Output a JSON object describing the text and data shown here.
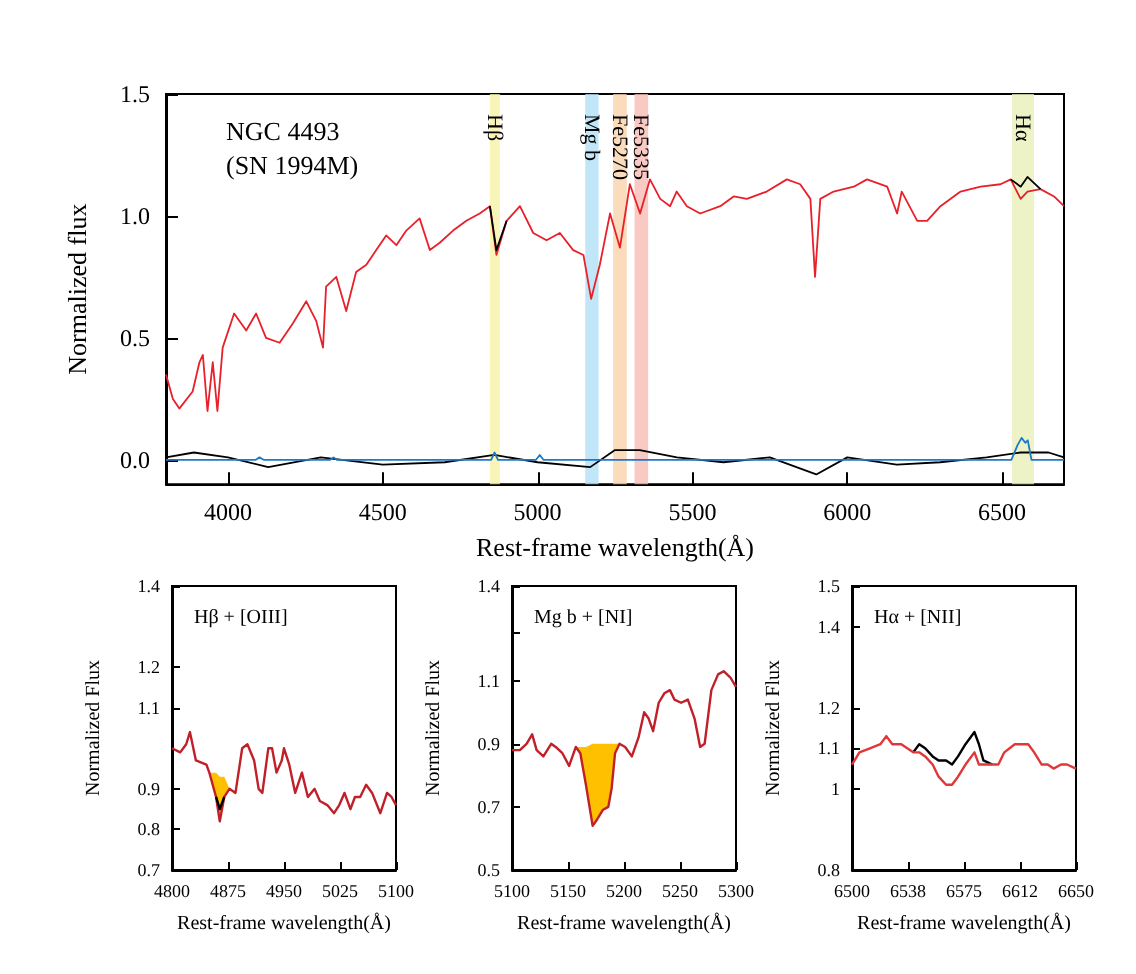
{
  "chart_data": [
    {
      "type": "line",
      "xlabel": "Rest-frame wavelength(Å)",
      "ylabel": "Normalized flux",
      "annotations": [
        "NGC 4493",
        "(SN 1994M)"
      ],
      "xlim": [
        3800,
        6700
      ],
      "ylim": [
        -0.1,
        1.5
      ],
      "xticks": [
        4000,
        4500,
        5000,
        5500,
        6000,
        6500
      ],
      "yticks": [
        {
          "value": 0,
          "label": "0.0"
        },
        {
          "value": 0.5,
          "label": "0.5"
        },
        {
          "value": 1,
          "label": "1.0"
        },
        {
          "value": 1.5,
          "label": "1.5"
        }
      ],
      "grid": false,
      "bands": [
        {
          "axis": "x",
          "from": 4846,
          "to": 4878,
          "label": "Hβ",
          "color": "#f7f2a8"
        },
        {
          "axis": "x",
          "from": 5154,
          "to": 5197,
          "label": "Mg b",
          "color": "#b0e0f5"
        },
        {
          "axis": "x",
          "from": 5244,
          "to": 5288,
          "label": "Fe5270",
          "color": "#f9d2aa"
        },
        {
          "axis": "x",
          "from": 5313,
          "to": 5357,
          "label": "Fe5335",
          "color": "#f8bcb4"
        },
        {
          "axis": "x",
          "from": 6532,
          "to": 6603,
          "label": "Hα",
          "color": "#e8f0b8"
        }
      ],
      "series": [
        {
          "color": "#e8202a",
          "x": [
            3800,
            3822,
            3843,
            3886,
            3908,
            3919,
            3934,
            3951,
            3966,
            3983,
            4020,
            4059,
            4091,
            4123,
            4167,
            4210,
            4253,
            4285,
            4307,
            4317,
            4350,
            4382,
            4414,
            4447,
            4479,
            4511,
            4544,
            4576,
            4619,
            4652,
            4684,
            4727,
            4770,
            4813,
            4846,
            4867,
            4900,
            4943,
            4986,
            5029,
            5072,
            5115,
            5148,
            5173,
            5201,
            5234,
            5266,
            5298,
            5331,
            5363,
            5396,
            5428,
            5449,
            5482,
            5525,
            5590,
            5633,
            5676,
            5740,
            5805,
            5848,
            5881,
            5896,
            5913,
            5956,
            6021,
            6064,
            6129,
            6161,
            6176,
            6226,
            6258,
            6301,
            6366,
            6431,
            6495,
            6528,
            6560,
            6582,
            6624,
            6668,
            6700
          ],
          "values": [
            0.35,
            0.25,
            0.21,
            0.28,
            0.4,
            0.43,
            0.2,
            0.4,
            0.2,
            0.46,
            0.6,
            0.53,
            0.6,
            0.5,
            0.48,
            0.56,
            0.65,
            0.57,
            0.46,
            0.71,
            0.75,
            0.61,
            0.77,
            0.8,
            0.86,
            0.92,
            0.88,
            0.94,
            0.99,
            0.86,
            0.89,
            0.94,
            0.98,
            1.01,
            1.04,
            0.84,
            0.98,
            1.04,
            0.93,
            0.9,
            0.93,
            0.86,
            0.84,
            0.66,
            0.8,
            1.01,
            0.87,
            1.13,
            1.01,
            1.15,
            1.07,
            1.04,
            1.1,
            1.04,
            1.01,
            1.04,
            1.08,
            1.07,
            1.1,
            1.15,
            1.13,
            1.07,
            0.75,
            1.07,
            1.1,
            1.12,
            1.15,
            1.12,
            1.01,
            1.1,
            0.98,
            0.98,
            1.04,
            1.1,
            1.12,
            1.13,
            1.15,
            1.07,
            1.1,
            1.11,
            1.08,
            1.04
          ]
        },
        {
          "color": "#000000",
          "x": [
            4846,
            4867,
            4900,
            5000,
            6528,
            6560,
            6582,
            6624
          ],
          "values": [
            1.04,
            0.86,
            0.98,
            null,
            1.15,
            1.12,
            1.16,
            1.11
          ]
        },
        {
          "color": "#000000",
          "x": [
            3800,
            3890,
            4000,
            4130,
            4300,
            4500,
            4700,
            4860,
            5000,
            5170,
            5250,
            5330,
            5450,
            5600,
            5750,
            5900,
            6000,
            6160,
            6300,
            6450,
            6560,
            6650,
            6700
          ],
          "values": [
            0.01,
            0.03,
            0.01,
            -0.03,
            0.01,
            -0.02,
            -0.01,
            0.02,
            -0.01,
            -0.03,
            0.04,
            0.04,
            0.01,
            -0.01,
            0.01,
            -0.06,
            0.01,
            -0.02,
            -0.01,
            0.01,
            0.03,
            0.03,
            0.01
          ]
        },
        {
          "color": "#1f78c8",
          "x": [
            3800,
            4090,
            4102,
            4115,
            4330,
            4341,
            4352,
            4850,
            4861,
            4872,
            4995,
            5007,
            5019,
            6530,
            6550,
            6563,
            6575,
            6583,
            6595,
            6700
          ],
          "values": [
            0,
            0,
            0.01,
            0,
            0,
            0.01,
            0,
            0,
            0.03,
            0,
            0,
            0.02,
            0,
            0,
            0.06,
            0.09,
            0.07,
            0.08,
            0,
            0
          ]
        }
      ]
    },
    {
      "type": "line",
      "title": "Hβ + [OIII]",
      "xlabel": "Rest-frame wavelength(Å)",
      "ylabel": "Normalized Flux",
      "xlim": [
        4800,
        5100
      ],
      "ylim": [
        0.7,
        1.4
      ],
      "xticks": [
        4800,
        4875,
        4950,
        5025,
        5100
      ],
      "yticks": [
        0.7,
        0.8,
        0.9,
        1.1,
        1.2,
        1.4
      ],
      "grid": false,
      "series": [
        {
          "color": "#c0202a",
          "x": [
            4800,
            4811,
            4819,
            4824,
            4832,
            4846,
            4850,
            4859,
            4864,
            4870,
            4877,
            4885,
            4894,
            4901,
            4910,
            4916,
            4921,
            4929,
            4934,
            4940,
            4947,
            4950,
            4957,
            4965,
            4974,
            4982,
            4991,
            4998,
            5008,
            5017,
            5024,
            5031,
            5039,
            5045,
            5052,
            5060,
            5068,
            5079,
            5088,
            5094,
            5100
          ],
          "values": [
            1.0,
            0.99,
            1.01,
            1.04,
            0.97,
            0.96,
            0.94,
            0.88,
            0.82,
            0.88,
            0.9,
            0.89,
            1.0,
            1.01,
            0.97,
            0.9,
            0.89,
            1.0,
            1.0,
            0.94,
            0.97,
            1.0,
            0.96,
            0.89,
            0.94,
            0.88,
            0.9,
            0.87,
            0.86,
            0.84,
            0.86,
            0.89,
            0.85,
            0.88,
            0.88,
            0.91,
            0.89,
            0.84,
            0.89,
            0.88,
            0.86
          ],
          "lower": [
            null,
            null,
            null,
            null,
            null,
            null,
            0.94,
            0.88,
            0.82,
            0.88,
            0.9,
            null,
            null,
            null,
            null,
            null,
            null,
            null,
            null,
            null,
            null,
            null,
            null,
            null,
            null,
            null,
            null,
            null,
            null,
            null,
            null,
            null,
            null,
            null,
            null,
            null,
            null,
            null,
            null,
            null,
            null
          ],
          "upper": [
            null,
            null,
            null,
            null,
            null,
            null,
            0.94,
            0.94,
            0.93,
            0.93,
            0.9,
            null,
            null,
            null,
            null,
            null,
            null,
            null,
            null,
            null,
            null,
            null,
            null,
            null,
            null,
            null,
            null,
            null,
            null,
            null,
            null,
            null,
            null,
            null,
            null,
            null,
            null,
            null,
            null,
            null,
            null
          ]
        },
        {
          "color": "#000000",
          "x": [
            4859,
            4864,
            4870
          ],
          "values": [
            0.88,
            0.85,
            0.88
          ]
        }
      ]
    },
    {
      "type": "line",
      "title": "Mg b + [NI]",
      "xlabel": "Rest-frame wavelength(Å)",
      "ylabel": "Normalized Flux",
      "xlim": [
        5100,
        5300
      ],
      "ylim": [
        0.5,
        1.4
      ],
      "xticks": [
        5100,
        5150,
        5200,
        5250,
        5300
      ],
      "yticks": [
        0.5,
        0.7,
        0.9,
        1.1,
        {
          "value": 1.25,
          "label": null
        },
        1.4
      ],
      "grid": false,
      "series": [
        {
          "color": "#c0202a",
          "x": [
            5100,
            5107,
            5113,
            5118,
            5122,
            5128,
            5135,
            5139,
            5145,
            5151,
            5157,
            5161,
            5166,
            5172,
            5176,
            5181,
            5186,
            5189,
            5192,
            5196,
            5201,
            5207,
            5213,
            5218,
            5222,
            5226,
            5231,
            5236,
            5241,
            5245,
            5251,
            5257,
            5263,
            5268,
            5272,
            5278,
            5284,
            5289,
            5295,
            5300
          ],
          "values": [
            0.88,
            0.88,
            0.9,
            0.93,
            0.88,
            0.86,
            0.9,
            0.89,
            0.87,
            0.83,
            0.89,
            0.87,
            0.77,
            0.64,
            0.66,
            0.69,
            0.7,
            0.76,
            0.87,
            0.9,
            0.89,
            0.86,
            0.92,
            1.0,
            0.98,
            0.94,
            1.03,
            1.06,
            1.07,
            1.04,
            1.03,
            1.04,
            0.98,
            0.89,
            0.9,
            1.07,
            1.12,
            1.13,
            1.11,
            1.08
          ],
          "lower": [
            null,
            null,
            null,
            null,
            null,
            null,
            null,
            null,
            null,
            null,
            0.89,
            0.87,
            0.77,
            0.64,
            0.66,
            0.69,
            0.7,
            0.76,
            0.87,
            0.9,
            null,
            null,
            null,
            null,
            null,
            null,
            null,
            null,
            null,
            null,
            null,
            null,
            null,
            null,
            null,
            null,
            null,
            null,
            null,
            null
          ],
          "upper": [
            null,
            null,
            null,
            null,
            null,
            null,
            null,
            null,
            null,
            null,
            0.89,
            0.89,
            0.89,
            0.9,
            0.9,
            0.9,
            0.9,
            0.9,
            0.9,
            0.9,
            null,
            null,
            null,
            null,
            null,
            null,
            null,
            null,
            null,
            null,
            null,
            null,
            null,
            null,
            null,
            null,
            null,
            null,
            null,
            null
          ]
        }
      ]
    },
    {
      "type": "line",
      "title": "Hα + [NII]",
      "xlabel": "Rest-frame wavelength(Å)",
      "ylabel": "Normalized Flux",
      "xlim": [
        6500,
        6650
      ],
      "ylim": [
        0.8,
        1.5
      ],
      "xticks": [
        6500,
        {
          "value": 6537.5,
          "label": "6538"
        },
        6575,
        {
          "value": 6612.5,
          "label": "6612"
        },
        6650
      ],
      "yticks": [
        0.8,
        1.0,
        1.1,
        1.2,
        1.4,
        1.5
      ],
      "grid": false,
      "series": [
        {
          "color": "#000000",
          "x": [
            6541,
            6545,
            6549,
            6554,
            6558,
            6563,
            6567,
            6571,
            6576,
            6582,
            6585,
            6588,
            6594
          ],
          "values": [
            1.09,
            1.11,
            1.1,
            1.08,
            1.07,
            1.07,
            1.06,
            1.08,
            1.11,
            1.14,
            1.11,
            1.07,
            1.06
          ]
        },
        {
          "color": "#e03838",
          "x": [
            6500,
            6505,
            6512,
            6519,
            6523,
            6527,
            6533,
            6537,
            6541,
            6545,
            6549,
            6554,
            6558,
            6563,
            6567,
            6571,
            6576,
            6582,
            6585,
            6588,
            6594,
            6598,
            6602,
            6609,
            6613,
            6618,
            6622,
            6627,
            6631,
            6635,
            6640,
            6644,
            6650
          ],
          "values": [
            1.06,
            1.09,
            1.1,
            1.11,
            1.13,
            1.11,
            1.11,
            1.1,
            1.09,
            1.09,
            1.08,
            1.06,
            1.03,
            1.01,
            1.01,
            1.03,
            1.06,
            1.09,
            1.06,
            1.06,
            1.06,
            1.06,
            1.09,
            1.11,
            1.11,
            1.11,
            1.09,
            1.06,
            1.06,
            1.05,
            1.06,
            1.06,
            1.05
          ]
        }
      ]
    }
  ]
}
